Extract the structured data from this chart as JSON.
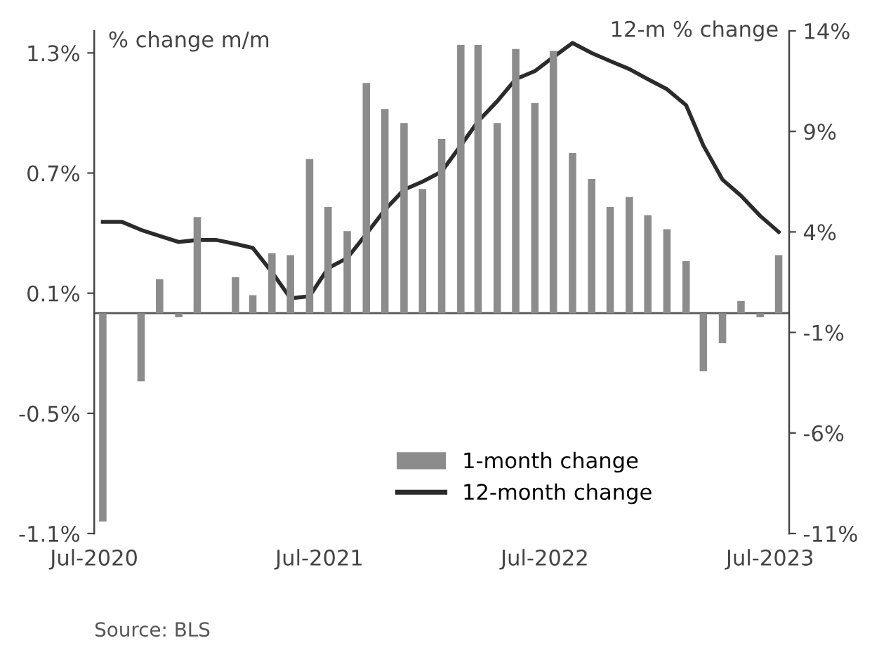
{
  "chart_data": {
    "type": "bar",
    "ylabel": "% change m/m",
    "y2label": "12-m % change",
    "annotations": [
      "Source: BLS"
    ],
    "x": [
      "2020-07-15",
      "2020-08-15",
      "2020-09-15",
      "2020-10-15",
      "2020-11-15",
      "2020-12-15",
      "2021-01-15",
      "2021-02-15",
      "2021-03-15",
      "2021-04-15",
      "2021-05-15",
      "2021-06-15",
      "2021-07-15",
      "2021-08-15",
      "2021-09-15",
      "2021-10-15",
      "2021-11-15",
      "2021-12-15",
      "2022-01-15",
      "2022-02-15",
      "2022-03-15",
      "2022-04-15",
      "2022-05-15",
      "2022-06-15",
      "2022-07-15",
      "2022-08-15",
      "2022-09-15",
      "2022-10-15",
      "2022-11-15",
      "2022-12-15",
      "2023-01-15",
      "2023-02-15",
      "2023-03-15",
      "2023-04-15",
      "2023-05-15",
      "2023-06-15",
      "2023-07-15"
    ],
    "series": [
      {
        "name": "1-month change",
        "color": "#8c8c8c",
        "values": [
          -1.04,
          0,
          -0.34,
          0.17,
          -0.02,
          0.48,
          0,
          0.18,
          0.09,
          0.3,
          0.29,
          0.77,
          0.53,
          0.41,
          1.15,
          1.02,
          0.95,
          0.62,
          0.87,
          1.34,
          1.34,
          0.95,
          1.32,
          1.05,
          1.31,
          0.8,
          0.67,
          0.53,
          0.58,
          0.49,
          0.42,
          0.26,
          -0.29,
          -0.15,
          0.06,
          -0.02,
          0.29
        ]
      },
      {
        "name": "12-month change",
        "type": "line",
        "axis": "y2",
        "color": "#2b2b2b",
        "values": [
          4.5,
          4.5,
          4.1,
          3.8,
          3.5,
          3.6,
          3.6,
          3.4,
          3.2,
          2.0,
          0.7,
          0.8,
          2.2,
          2.7,
          3.9,
          5.1,
          6.1,
          6.5,
          7.0,
          8.3,
          9.5,
          10.5,
          11.6,
          12.0,
          12.7,
          13.4,
          12.9,
          12.5,
          12.1,
          11.6,
          11.1,
          10.3,
          8.3,
          6.6,
          5.8,
          4.8,
          4.0
        ]
      }
    ],
    "xlim": [
      "2020-07-01",
      "2023-08-01"
    ],
    "xticks": [
      {
        "value": "2020-07-01",
        "label": "Jul-2020"
      },
      {
        "value": "2021-07-01",
        "label": "Jul-2021"
      },
      {
        "value": "2022-07-01",
        "label": "Jul-2022"
      },
      {
        "value": "2023-07-01",
        "label": "Jul-2023"
      }
    ],
    "ylim": [
      -1.1,
      1.41
    ],
    "yticks": [
      {
        "value": -1.1,
        "label": "-1.1%"
      },
      {
        "value": -0.5,
        "label": "-0.5%"
      },
      {
        "value": 0.1,
        "label": "0.1%"
      },
      {
        "value": 0.7,
        "label": "0.7%"
      },
      {
        "value": 1.3,
        "label": "1.3%"
      }
    ],
    "y2lim": [
      -11,
      14
    ],
    "y2ticks": [
      {
        "value": -11,
        "label": "-11%"
      },
      {
        "value": -6,
        "label": "-6%"
      },
      {
        "value": -1,
        "label": "-1%"
      },
      {
        "value": 4,
        "label": "4%"
      },
      {
        "value": 9,
        "label": "9%"
      },
      {
        "value": 14,
        "label": "14%"
      }
    ],
    "ref_lines": [
      {
        "axis": "y",
        "value": 0,
        "color": "#555555"
      }
    ],
    "legend": "bottom",
    "grid": false
  }
}
